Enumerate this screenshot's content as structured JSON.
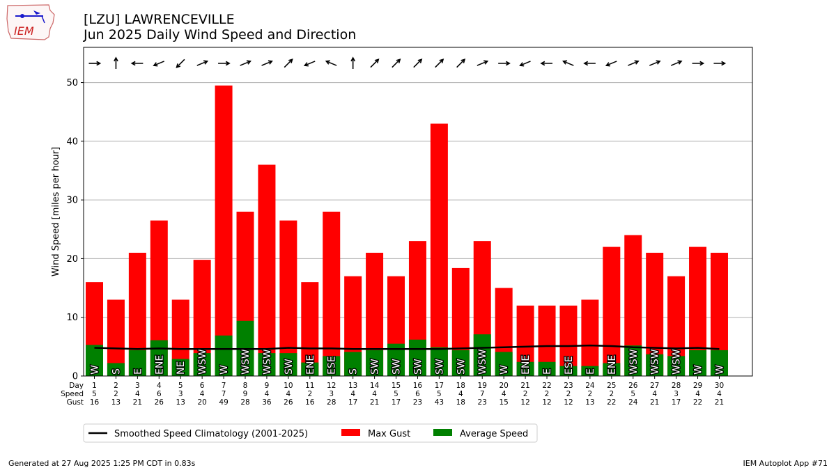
{
  "header": {
    "title": "[LZU] LAWRENCEVILLE",
    "subtitle": "Jun 2025 Daily Wind Speed and Direction"
  },
  "logo": {
    "text": "IEM",
    "icon": "iem-logo-icon"
  },
  "footer": {
    "generated": "Generated at 27 Aug 2025 1:25 PM CDT in 0.83s",
    "app": "IEM Autoplot App #71"
  },
  "chart_data": {
    "type": "bar",
    "ylabel": "Wind Speed [miles per hour]",
    "ylim": [
      0,
      56
    ],
    "yticks": [
      0,
      10,
      20,
      30,
      40,
      50
    ],
    "grid": true,
    "row_labels": [
      "Day",
      "Speed",
      "Gust"
    ],
    "days": [
      1,
      2,
      3,
      4,
      5,
      6,
      7,
      8,
      9,
      10,
      11,
      12,
      13,
      14,
      15,
      16,
      17,
      18,
      19,
      20,
      21,
      22,
      23,
      24,
      25,
      26,
      27,
      28,
      29,
      30
    ],
    "speed_labels": [
      5,
      2,
      4,
      6,
      3,
      4,
      7,
      9,
      4,
      4,
      2,
      3,
      4,
      4,
      5,
      6,
      5,
      4,
      7,
      4,
      2,
      2,
      2,
      2,
      2,
      5,
      4,
      3,
      4,
      4
    ],
    "gust_labels": [
      16,
      13,
      21,
      26,
      13,
      20,
      49,
      28,
      36,
      26,
      16,
      28,
      17,
      21,
      17,
      23,
      43,
      18,
      23,
      15,
      12,
      12,
      12,
      13,
      22,
      24,
      21,
      17,
      22,
      21
    ],
    "series": [
      {
        "name": "Max Gust",
        "color": "#ff0000",
        "values": [
          16,
          13,
          21,
          26.5,
          13,
          19.8,
          49.5,
          28,
          36,
          26.5,
          16,
          28,
          17,
          21,
          17,
          23,
          43,
          18.4,
          23,
          15,
          12,
          12,
          12,
          13,
          22,
          24,
          21,
          17,
          22,
          21
        ]
      },
      {
        "name": "Average Speed",
        "color": "#008000",
        "values": [
          5.3,
          2.2,
          4.4,
          6.1,
          2.9,
          3.9,
          6.9,
          9.4,
          3.9,
          3.9,
          2.3,
          3.4,
          4.1,
          4.4,
          5.5,
          6.2,
          4.9,
          4.4,
          7.1,
          4.1,
          2.4,
          2.4,
          1.7,
          1.7,
          2.2,
          5.2,
          3.7,
          3.4,
          4.4,
          4.4
        ]
      },
      {
        "name": "Smoothed Speed Climatology (2001-2025)",
        "color": "#000000",
        "values": [
          4.8,
          4.7,
          4.6,
          4.7,
          4.6,
          4.6,
          4.6,
          4.6,
          4.6,
          4.8,
          4.7,
          4.7,
          4.6,
          4.6,
          4.6,
          4.6,
          4.6,
          4.7,
          4.8,
          4.9,
          5.0,
          5.1,
          5.1,
          5.2,
          5.1,
          4.9,
          4.8,
          4.7,
          4.8,
          4.6
        ]
      }
    ],
    "directions": [
      "W",
      "S",
      "E",
      "ENE",
      "NE",
      "WSW",
      "W",
      "WSW",
      "WSW",
      "SW",
      "ENE",
      "ESE",
      "S",
      "SW",
      "SW",
      "SW",
      "SW",
      "SW",
      "WSW",
      "W",
      "ENE",
      "E",
      "ESE",
      "E",
      "ENE",
      "WSW",
      "WSW",
      "WSW",
      "W",
      "W"
    ],
    "legend": {
      "placement": "bottom-left",
      "entries": [
        "Smoothed Speed Climatology (2001-2025)",
        "Max Gust",
        "Average Speed"
      ]
    }
  }
}
